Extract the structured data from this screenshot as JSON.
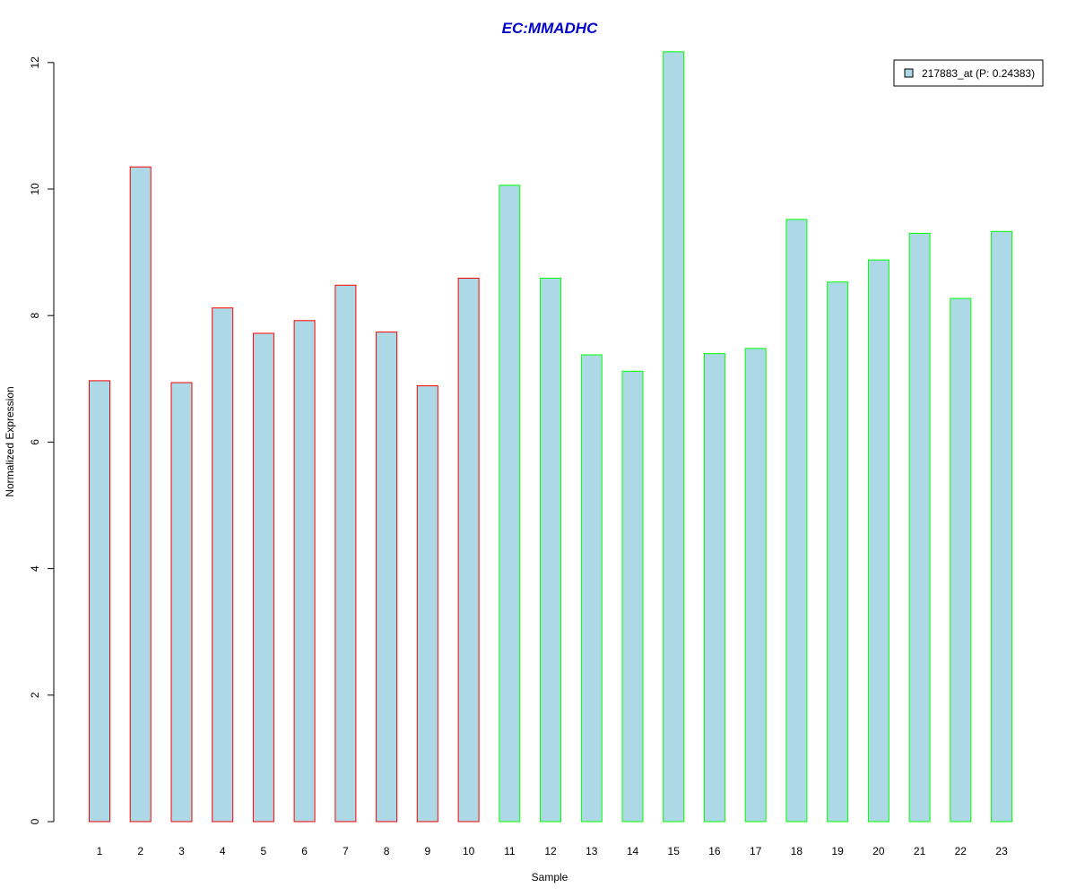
{
  "chart_data": {
    "type": "bar",
    "title": "EC:MMADHC",
    "xlabel": "Sample",
    "ylabel": "Normalized Expression",
    "ylim": [
      0,
      12.3
    ],
    "yticks": [
      0,
      2,
      4,
      6,
      8,
      10,
      12
    ],
    "categories": [
      "1",
      "2",
      "3",
      "4",
      "5",
      "6",
      "7",
      "8",
      "9",
      "10",
      "11",
      "12",
      "13",
      "14",
      "15",
      "16",
      "17",
      "18",
      "19",
      "20",
      "21",
      "22",
      "23"
    ],
    "series": [
      {
        "name": "217883_at (P: 0.24383)",
        "values": [
          6.97,
          10.35,
          6.94,
          8.12,
          7.72,
          7.92,
          8.48,
          7.74,
          6.89,
          8.59,
          10.06,
          8.59,
          7.38,
          7.12,
          12.17,
          7.4,
          7.48,
          9.52,
          8.53,
          8.88,
          9.3,
          8.27,
          9.33
        ]
      }
    ],
    "group_border_colors": [
      "#ff0000",
      "#ff0000",
      "#ff0000",
      "#ff0000",
      "#ff0000",
      "#ff0000",
      "#ff0000",
      "#ff0000",
      "#ff0000",
      "#ff0000",
      "#00ff00",
      "#00ff00",
      "#00ff00",
      "#00ff00",
      "#00ff00",
      "#00ff00",
      "#00ff00",
      "#00ff00",
      "#00ff00",
      "#00ff00",
      "#00ff00",
      "#00ff00",
      "#00ff00"
    ],
    "bar_fill": "#add8e6",
    "title_color": "#0000cc",
    "legend_position": "top-right",
    "grid": false
  }
}
